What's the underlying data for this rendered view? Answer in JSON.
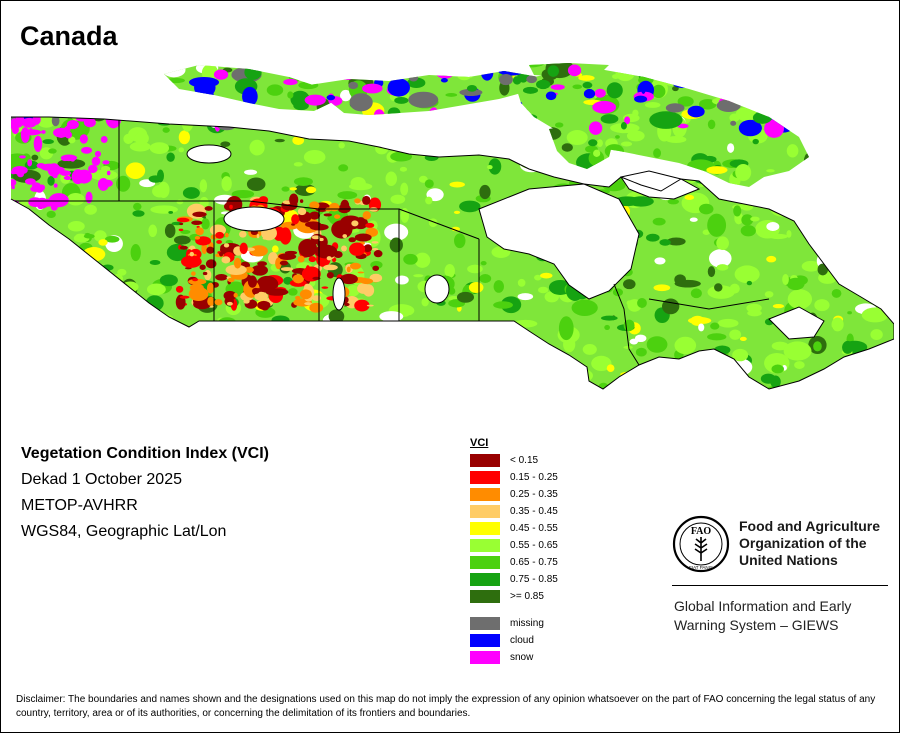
{
  "map": {
    "title": "Canada"
  },
  "info": {
    "index_title": "Vegetation Condition Index (VCI)",
    "period": "Dekad 1 October 2025",
    "sensor": "METOP-AVHRR",
    "projection": "WGS84, Geographic Lat/Lon"
  },
  "legend": {
    "title": "VCI",
    "classes": [
      {
        "label": "< 0.15",
        "color": "#990000"
      },
      {
        "label": "0.15 - 0.25",
        "color": "#ff0000"
      },
      {
        "label": "0.25 - 0.35",
        "color": "#ff8c00"
      },
      {
        "label": "0.35 - 0.45",
        "color": "#ffcc66"
      },
      {
        "label": "0.45 - 0.55",
        "color": "#ffff00"
      },
      {
        "label": "0.55 - 0.65",
        "color": "#99ff33"
      },
      {
        "label": "0.65 - 0.75",
        "color": "#4cd10f"
      },
      {
        "label": "0.75 - 0.85",
        "color": "#16a312"
      },
      {
        "label": ">= 0.85",
        "color": "#2e6e0e"
      }
    ],
    "extra": [
      {
        "label": "missing",
        "color": "#6e6e6e"
      },
      {
        "label": "cloud",
        "color": "#0000ff"
      },
      {
        "label": "snow",
        "color": "#ff00ff"
      }
    ]
  },
  "fao": {
    "name": "Food and Agriculture\nOrganization of the\nUnited Nations",
    "logo_letters": "FAO",
    "logo_motto": "FIAT PANIS",
    "giews": "Global Information and Early\nWarning System – GIEWS"
  },
  "disclaimer": "Disclaimer: The boundaries and names shown and the designations used on this map do not imply the expression of any opinion whatsoever on the part of FAO concerning the legal status of any country, territory, area or of its authorities, or concerning the delimitation of its frontiers and boundaries."
}
